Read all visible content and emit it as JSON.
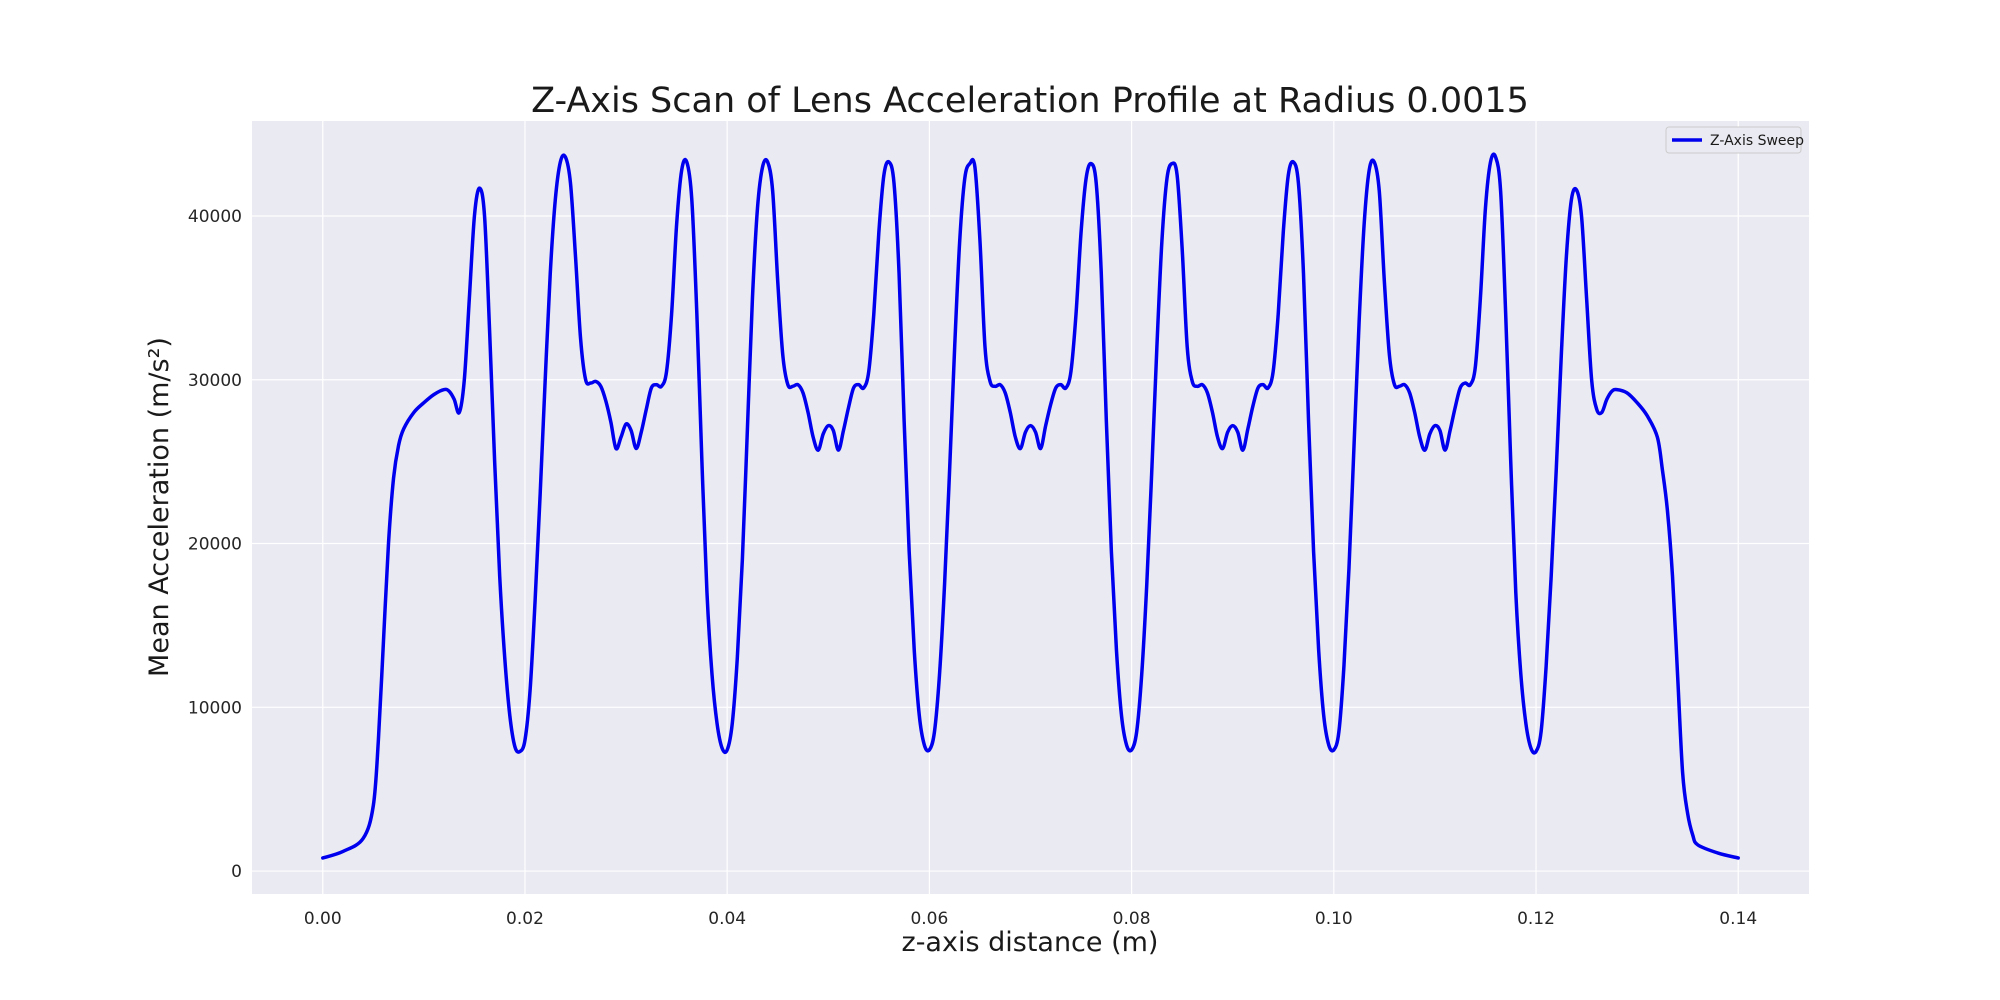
{
  "chart_data": {
    "type": "line",
    "title": "Z-Axis Scan of Lens Acceleration Profile at Radius 0.0015",
    "xlabel": "z-axis distance (m)",
    "ylabel": "Mean Acceleration (m/s²)",
    "xlim": [
      -0.007,
      0.147
    ],
    "ylim": [
      -1400,
      45800
    ],
    "xticks": [
      0.0,
      0.02,
      0.04,
      0.06,
      0.08,
      0.1,
      0.12,
      0.14
    ],
    "xtick_labels": [
      "0.00",
      "0.02",
      "0.04",
      "0.06",
      "0.08",
      "0.10",
      "0.12",
      "0.14"
    ],
    "yticks": [
      0,
      10000,
      20000,
      30000,
      40000
    ],
    "ytick_labels": [
      "0",
      "10000",
      "20000",
      "30000",
      "40000"
    ],
    "grid": true,
    "legend_position": "top-right",
    "colors": {
      "line": "#0000ee",
      "plot_bg": "#eaeaf2",
      "grid": "#ffffff"
    },
    "series": [
      {
        "name": "Z-Axis Sweep",
        "x": [
          0.0,
          0.002,
          0.004,
          0.005,
          0.0055,
          0.006,
          0.0065,
          0.007,
          0.0075,
          0.008,
          0.009,
          0.01,
          0.011,
          0.012,
          0.0125,
          0.013,
          0.0135,
          0.014,
          0.0145,
          0.015,
          0.0155,
          0.016,
          0.0165,
          0.017,
          0.0175,
          0.018,
          0.0185,
          0.019,
          0.0195,
          0.02,
          0.0205,
          0.021,
          0.0215,
          0.022,
          0.0225,
          0.023,
          0.0235,
          0.024,
          0.0245,
          0.025,
          0.0255,
          0.026,
          0.0265,
          0.027,
          0.0275,
          0.028,
          0.0285,
          0.029,
          0.0295,
          0.03,
          0.0305,
          0.031,
          0.0315,
          0.032,
          0.0325,
          0.033,
          0.0335,
          0.034,
          0.0345,
          0.035,
          0.0355,
          0.036,
          0.0365,
          0.037,
          0.0375,
          0.038,
          0.0385,
          0.039,
          0.0395,
          0.04,
          0.0405,
          0.041,
          0.0415,
          0.042,
          0.0425,
          0.043,
          0.0435,
          0.044,
          0.0445,
          0.045,
          0.0455,
          0.046,
          0.0465,
          0.047,
          0.0475,
          0.048,
          0.0485,
          0.049,
          0.0495,
          0.05,
          0.0505,
          0.051,
          0.0515,
          0.052,
          0.0525,
          0.053,
          0.0535,
          0.054,
          0.0545,
          0.055,
          0.0555,
          0.056,
          0.0565,
          0.057,
          0.0575,
          0.058,
          0.0585,
          0.059,
          0.0595,
          0.06,
          0.0605,
          0.061,
          0.0615,
          0.062,
          0.0625,
          0.063,
          0.0635,
          0.064,
          0.0645,
          0.065,
          0.0655,
          0.066,
          0.0665,
          0.067,
          0.0675,
          0.068,
          0.0685,
          0.069,
          0.0695,
          0.07,
          0.0705,
          0.071,
          0.0715,
          0.072,
          0.0725,
          0.073,
          0.0735,
          0.074,
          0.0745,
          0.075,
          0.0755,
          0.076,
          0.0765,
          0.077,
          0.0775,
          0.078,
          0.0785,
          0.079,
          0.0795,
          0.08,
          0.0805,
          0.081,
          0.0815,
          0.082,
          0.0825,
          0.083,
          0.0835,
          0.084,
          0.0845,
          0.085,
          0.0855,
          0.086,
          0.0865,
          0.087,
          0.0875,
          0.088,
          0.0885,
          0.089,
          0.0895,
          0.09,
          0.0905,
          0.091,
          0.0915,
          0.092,
          0.0925,
          0.093,
          0.0935,
          0.094,
          0.0945,
          0.095,
          0.0955,
          0.096,
          0.0965,
          0.097,
          0.0975,
          0.098,
          0.0985,
          0.099,
          0.0995,
          0.1,
          0.1005,
          0.101,
          0.1015,
          0.102,
          0.1025,
          0.103,
          0.1035,
          0.104,
          0.1045,
          0.105,
          0.1055,
          0.106,
          0.1065,
          0.107,
          0.1075,
          0.108,
          0.1085,
          0.109,
          0.1095,
          0.11,
          0.1105,
          0.111,
          0.1115,
          0.112,
          0.1125,
          0.113,
          0.1135,
          0.114,
          0.1145,
          0.115,
          0.1155,
          0.116,
          0.1165,
          0.117,
          0.1175,
          0.118,
          0.1185,
          0.119,
          0.1195,
          0.12,
          0.1205,
          0.121,
          0.1215,
          0.122,
          0.1225,
          0.123,
          0.1235,
          0.124,
          0.1245,
          0.125,
          0.1255,
          0.126,
          0.1265,
          0.127,
          0.1275,
          0.128,
          0.129,
          0.13,
          0.131,
          0.132,
          0.1325,
          0.133,
          0.1335,
          0.134,
          0.1345,
          0.135,
          0.1355,
          0.136,
          0.138,
          0.14
        ],
        "y": [
          800,
          1200,
          2000,
          4000,
          8000,
          14000,
          20000,
          24000,
          26000,
          27000,
          28000,
          28600,
          29100,
          29400,
          29300,
          28800,
          28000,
          30000,
          35000,
          40000,
          41700,
          40000,
          33000,
          25000,
          18000,
          13000,
          9500,
          7600,
          7300,
          8000,
          11000,
          16500,
          23000,
          30000,
          36500,
          41000,
          43300,
          43600,
          42000,
          37500,
          32500,
          30000,
          29800,
          29900,
          29600,
          28700,
          27400,
          25800,
          26500,
          27300,
          26900,
          25800,
          26800,
          28200,
          29500,
          29700,
          29600,
          30500,
          34000,
          39500,
          42800,
          43300,
          41000,
          34000,
          25000,
          17000,
          12000,
          9000,
          7500,
          7400,
          9000,
          13000,
          19000,
          27000,
          35000,
          40500,
          43000,
          43300,
          41500,
          36000,
          31500,
          29700,
          29600,
          29700,
          29200,
          28000,
          26500,
          25700,
          26700,
          27200,
          26900,
          25700,
          26900,
          28300,
          29500,
          29700,
          29500,
          30500,
          34000,
          39000,
          42500,
          43300,
          42000,
          36500,
          27500,
          19500,
          13500,
          9500,
          7700,
          7400,
          8500,
          12000,
          17500,
          24500,
          32000,
          38500,
          42300,
          43200,
          43000,
          38500,
          32000,
          29900,
          29600,
          29700,
          29200,
          28000,
          26500,
          25800,
          26800,
          27200,
          26800,
          25800,
          27200,
          28500,
          29500,
          29700,
          29500,
          30500,
          34000,
          39000,
          42300,
          43200,
          42000,
          36500,
          27500,
          19500,
          13500,
          9500,
          7700,
          7400,
          8500,
          12000,
          17500,
          24500,
          32000,
          38500,
          42300,
          43200,
          42500,
          38000,
          32000,
          29900,
          29600,
          29700,
          29200,
          28000,
          26500,
          25800,
          26800,
          27200,
          26800,
          25700,
          27000,
          28400,
          29500,
          29700,
          29500,
          30500,
          34000,
          39000,
          42500,
          43300,
          42000,
          36500,
          27500,
          19500,
          13500,
          9500,
          7700,
          7400,
          8500,
          12500,
          18500,
          26000,
          33500,
          39500,
          42800,
          43300,
          41500,
          36000,
          31500,
          29700,
          29600,
          29700,
          29200,
          28000,
          26500,
          25700,
          26700,
          27200,
          26900,
          25700,
          26900,
          28300,
          29500,
          29800,
          29700,
          30800,
          35000,
          40500,
          43300,
          43600,
          41500,
          34000,
          25000,
          17000,
          12000,
          9000,
          7500,
          7300,
          8500,
          12500,
          18000,
          24500,
          31500,
          37500,
          41000,
          41600,
          40000,
          35000,
          30000,
          28200,
          28000,
          28800,
          29300,
          29400,
          29200,
          28600,
          27800,
          26500,
          24500,
          22000,
          18000,
          12000,
          6000,
          3500,
          2200,
          1600,
          1100,
          800
        ]
      }
    ]
  }
}
